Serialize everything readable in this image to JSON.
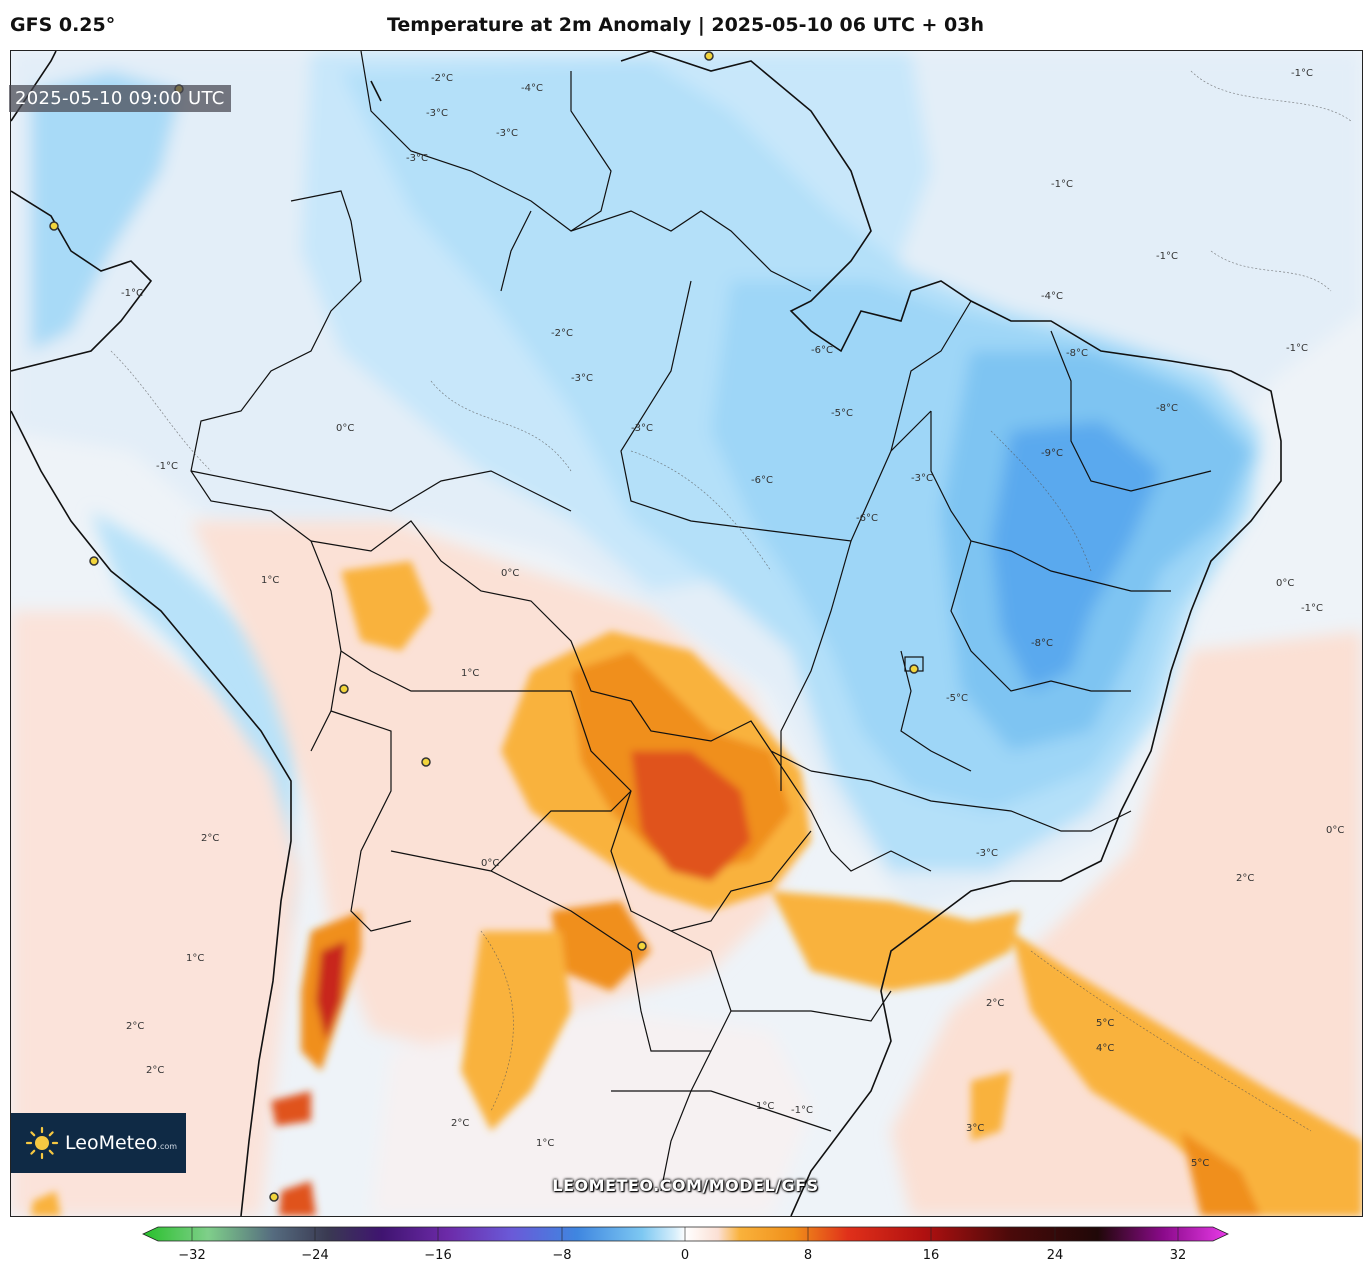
{
  "header": {
    "model": "GFS 0.25°",
    "title": "Temperature at 2m Anomaly | 2025-05-10 06 UTC + 03h"
  },
  "map": {
    "valid_time": "2025-05-10 09:00 UTC",
    "watermark": "LEOMETEO.COM/MODEL/GFS",
    "logo": {
      "brand": "LeoMeteo",
      "suffix": ".com"
    },
    "contour_labels": [
      {
        "text": "-3°C"
      },
      {
        "text": "-2°C"
      },
      {
        "text": "-4°C"
      },
      {
        "text": "-1°C"
      },
      {
        "text": "-6°C"
      },
      {
        "text": "-5°C"
      },
      {
        "text": "-8°C"
      },
      {
        "text": "-9°C"
      },
      {
        "text": "0°C"
      },
      {
        "text": "1°C"
      },
      {
        "text": "2°C"
      },
      {
        "text": "5°C"
      },
      {
        "text": "4°C"
      },
      {
        "text": "3°C"
      }
    ],
    "palette": {
      "very_cold": "#5aa9ee",
      "cold": "#8fcff4",
      "cool": "#bfe4f8",
      "slightly_cool": "#dbeef9",
      "neutral": "#f3f5f8",
      "slightly_warm": "#fbe3da",
      "warm": "#f9b23c",
      "hot": "#f08f1a",
      "very_hot": "#e0521a",
      "extreme": "#c8281a",
      "borders": "#111111"
    }
  },
  "colorbar": {
    "ticks": [
      "−32",
      "−24",
      "−16",
      "−8",
      "0",
      "8",
      "16",
      "24",
      "32"
    ],
    "min": -32,
    "max": 32
  }
}
